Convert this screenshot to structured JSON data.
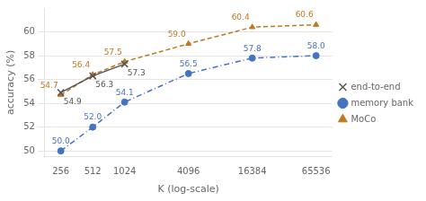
{
  "chart_data": {
    "type": "line",
    "x": [
      256,
      512,
      1024,
      4096,
      16384,
      65536
    ],
    "xlabel": "K (log-scale)",
    "ylabel": "accuracy (%)",
    "log": "x",
    "xlim": [
      181.02,
      92681.9
    ],
    "xticks": [
      256,
      512,
      1024,
      4096,
      16384,
      65536
    ],
    "ylim": [
      49.5,
      62.0
    ],
    "yticks": [
      50,
      52,
      54,
      56,
      58,
      60
    ],
    "grid": "y",
    "legend": "right",
    "data_labels": true,
    "series": [
      {
        "name": "end-to-end",
        "color": "#555555",
        "marker": "x",
        "line_style": "solid",
        "values": [
          54.9,
          56.3,
          57.3,
          null,
          null,
          null
        ],
        "value_labels": [
          "54.9",
          "56.3",
          "57.3",
          null,
          null,
          null
        ]
      },
      {
        "name": "memory bank",
        "color": "#4472c4",
        "marker": "circle",
        "line_style": "dashdot",
        "values": [
          50.0,
          52.0,
          54.1,
          56.5,
          57.8,
          58.0
        ],
        "value_labels": [
          "50.0",
          "52.0",
          "54.1",
          "56.5",
          "57.8",
          "58.0"
        ]
      },
      {
        "name": "MoCo",
        "color": "#c07820",
        "marker": "triangle",
        "line_style": "dashed",
        "values": [
          54.7,
          56.4,
          57.5,
          59.0,
          60.4,
          60.6
        ],
        "value_labels": [
          "54.7",
          "56.4",
          "57.5",
          "59.0",
          "60.4",
          "60.6"
        ]
      }
    ]
  }
}
